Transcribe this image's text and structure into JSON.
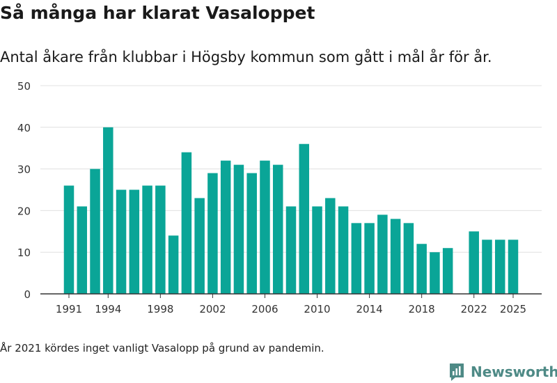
{
  "title": "Så många har klarat Vasaloppet",
  "subtitle": "Antal åkare från klubbar i Högsby kommun som gått i mål år för år.",
  "note": "År 2021 kördes inget vanligt Vasalopp på grund av pandemin.",
  "brand": {
    "name": "Newsworthy",
    "icon": "newsworthy-logo-icon"
  },
  "colors": {
    "bar": "#0aa597",
    "grid": "#e0e0e0",
    "axis": "#333333",
    "brand": "#4e8a86"
  },
  "chart_data": {
    "type": "bar",
    "title": "Så många har klarat Vasaloppet",
    "xlabel": "",
    "ylabel": "",
    "ylim": [
      0,
      50
    ],
    "yticks": [
      0,
      10,
      20,
      30,
      40,
      50
    ],
    "xticks": [
      1991,
      1994,
      1998,
      2002,
      2006,
      2010,
      2014,
      2018,
      2022,
      2025
    ],
    "grid": true,
    "x": [
      1991,
      1992,
      1993,
      1994,
      1995,
      1996,
      1997,
      1998,
      1999,
      2000,
      2001,
      2002,
      2003,
      2004,
      2005,
      2006,
      2007,
      2008,
      2009,
      2010,
      2011,
      2012,
      2013,
      2014,
      2015,
      2016,
      2017,
      2018,
      2019,
      2020,
      2021,
      2022,
      2023,
      2024,
      2025
    ],
    "values": [
      26,
      21,
      30,
      40,
      25,
      25,
      26,
      26,
      14,
      34,
      23,
      29,
      32,
      31,
      29,
      32,
      31,
      21,
      36,
      21,
      23,
      21,
      17,
      17,
      19,
      18,
      17,
      12,
      10,
      11,
      null,
      15,
      13,
      13,
      13
    ]
  }
}
